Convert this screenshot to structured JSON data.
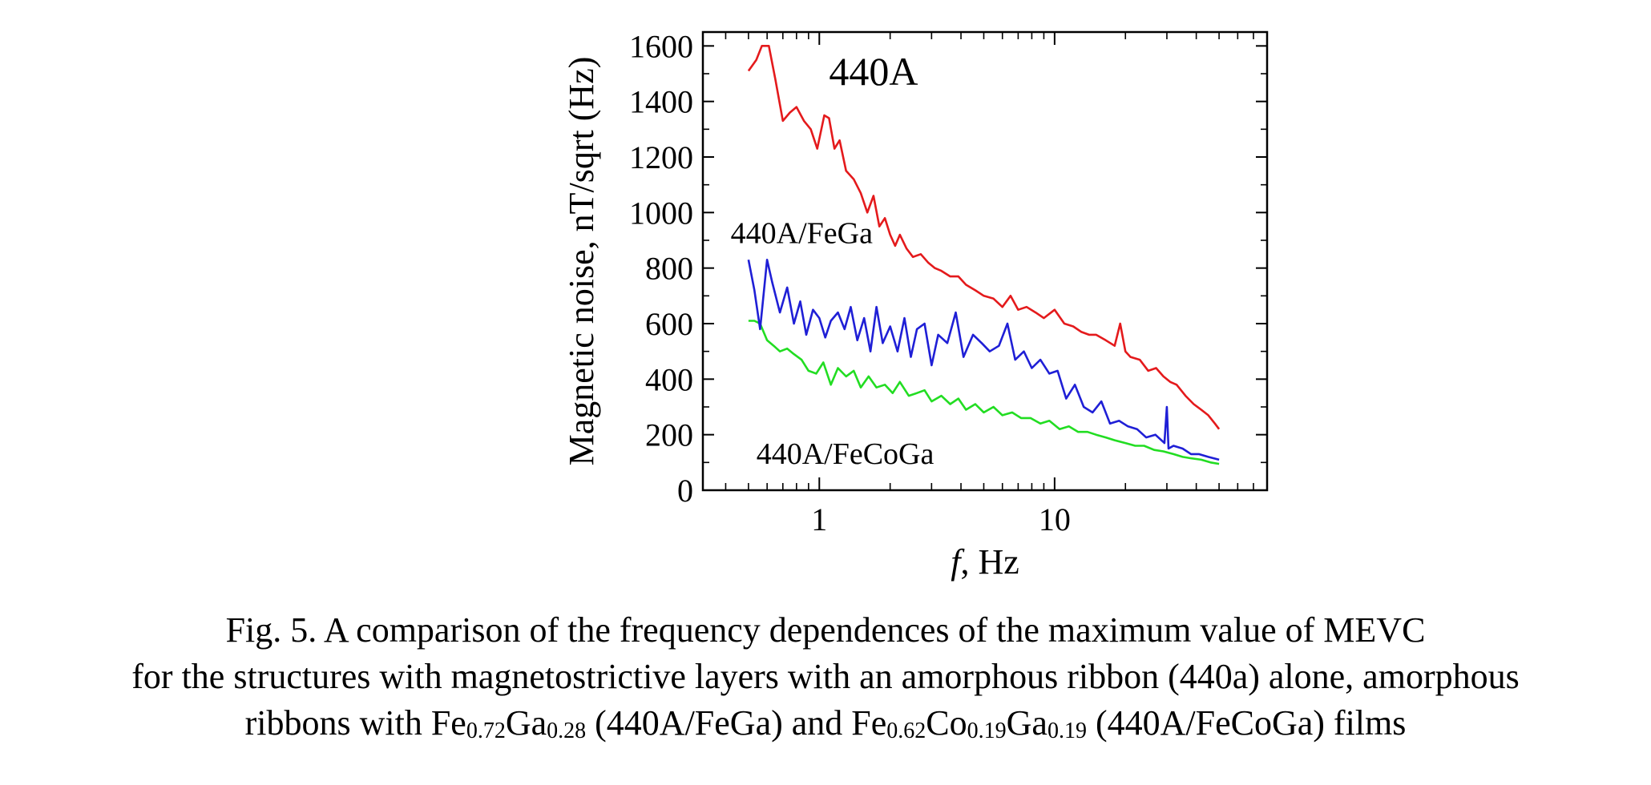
{
  "chart_data": {
    "type": "line",
    "x_scale": "log",
    "xlim": [
      0.32,
      80
    ],
    "ylim": [
      0,
      1650
    ],
    "xlabel_italic": "f",
    "xlabel_rest": ", Hz",
    "ylabel": "Magnetic noise, nT/sqrt (Hz)",
    "x_ticks": [
      1,
      10
    ],
    "x_tick_labels": [
      "1",
      "10"
    ],
    "y_ticks": [
      0,
      200,
      400,
      600,
      800,
      1000,
      1200,
      1400,
      1600
    ],
    "y_tick_labels": [
      "0",
      "200",
      "400",
      "600",
      "800",
      "1000",
      "1200",
      "1400",
      "1600"
    ],
    "grid": false,
    "series": [
      {
        "name": "440A",
        "color": "#e41a1c",
        "x": [
          0.5,
          0.54,
          0.57,
          0.61,
          0.65,
          0.7,
          0.75,
          0.8,
          0.86,
          0.92,
          0.98,
          1.05,
          1.1,
          1.16,
          1.22,
          1.3,
          1.4,
          1.5,
          1.6,
          1.7,
          1.8,
          1.9,
          2.0,
          2.1,
          2.2,
          2.35,
          2.5,
          2.7,
          2.9,
          3.1,
          3.3,
          3.6,
          3.9,
          4.2,
          4.6,
          5.0,
          5.5,
          6.0,
          6.5,
          7.0,
          7.6,
          8.3,
          9.0,
          10,
          11,
          12,
          13,
          14,
          15,
          16.5,
          18,
          19,
          20,
          21,
          23,
          25,
          27,
          29,
          31,
          33,
          36,
          39,
          42,
          45,
          48,
          50
        ],
        "values": [
          1510,
          1550,
          1600,
          1600,
          1480,
          1330,
          1360,
          1380,
          1330,
          1300,
          1230,
          1350,
          1340,
          1230,
          1260,
          1150,
          1120,
          1070,
          1000,
          1060,
          950,
          980,
          920,
          880,
          920,
          870,
          840,
          850,
          820,
          800,
          790,
          770,
          770,
          740,
          720,
          700,
          690,
          660,
          700,
          650,
          660,
          640,
          620,
          650,
          600,
          590,
          570,
          560,
          560,
          540,
          520,
          600,
          500,
          480,
          470,
          430,
          440,
          410,
          390,
          380,
          340,
          310,
          290,
          270,
          240,
          220
        ]
      },
      {
        "name": "440A/FeGa",
        "color": "#1f1fd6",
        "x": [
          0.5,
          0.53,
          0.56,
          0.6,
          0.63,
          0.68,
          0.73,
          0.78,
          0.83,
          0.88,
          0.94,
          1.0,
          1.06,
          1.12,
          1.2,
          1.28,
          1.36,
          1.45,
          1.55,
          1.65,
          1.75,
          1.86,
          2.0,
          2.15,
          2.3,
          2.45,
          2.6,
          2.8,
          3.0,
          3.2,
          3.5,
          3.8,
          4.1,
          4.5,
          4.9,
          5.3,
          5.8,
          6.3,
          6.8,
          7.4,
          8.0,
          8.7,
          9.5,
          10.3,
          11.2,
          12.2,
          13.3,
          14.5,
          15.8,
          17.2,
          18.8,
          20.5,
          22.4,
          24.5,
          26.8,
          29.3,
          30,
          30.5,
          32,
          35,
          38,
          41,
          45,
          50
        ],
        "values": [
          830,
          720,
          580,
          830,
          750,
          640,
          730,
          600,
          680,
          560,
          650,
          620,
          550,
          610,
          640,
          580,
          660,
          540,
          620,
          500,
          660,
          530,
          590,
          500,
          620,
          480,
          580,
          600,
          450,
          560,
          530,
          640,
          480,
          560,
          530,
          500,
          520,
          600,
          470,
          500,
          440,
          470,
          420,
          430,
          330,
          380,
          300,
          280,
          320,
          240,
          250,
          230,
          220,
          190,
          200,
          170,
          300,
          150,
          160,
          150,
          130,
          130,
          120,
          110
        ]
      },
      {
        "name": "440A/FeCoGa",
        "color": "#22dd22",
        "x": [
          0.5,
          0.53,
          0.56,
          0.6,
          0.64,
          0.68,
          0.73,
          0.78,
          0.84,
          0.9,
          0.97,
          1.04,
          1.12,
          1.2,
          1.3,
          1.4,
          1.5,
          1.62,
          1.75,
          1.9,
          2.05,
          2.2,
          2.4,
          2.6,
          2.8,
          3.0,
          3.3,
          3.6,
          3.9,
          4.2,
          4.6,
          5.0,
          5.5,
          6.0,
          6.6,
          7.2,
          7.9,
          8.7,
          9.5,
          10.5,
          11.5,
          12.6,
          13.8,
          15,
          16.5,
          18,
          20,
          22,
          24,
          26.5,
          29,
          32,
          35,
          38,
          42,
          46,
          50
        ],
        "values": [
          610,
          610,
          600,
          540,
          520,
          500,
          510,
          490,
          470,
          430,
          420,
          460,
          380,
          440,
          410,
          430,
          370,
          410,
          370,
          380,
          350,
          390,
          340,
          350,
          360,
          320,
          340,
          310,
          330,
          290,
          310,
          280,
          300,
          270,
          280,
          260,
          260,
          240,
          250,
          220,
          230,
          210,
          210,
          200,
          190,
          180,
          170,
          160,
          160,
          145,
          140,
          130,
          120,
          115,
          110,
          100,
          95
        ]
      }
    ],
    "annotations": [
      {
        "text": "440A",
        "x": 1.1,
        "y": 1460,
        "size": "big"
      },
      {
        "text": "440A/FeGa",
        "x": 0.42,
        "y": 890,
        "size": "normal"
      },
      {
        "text": "440A/FeCoGa",
        "x": 0.54,
        "y": 95,
        "size": "normal"
      }
    ]
  },
  "caption": {
    "line1": "Fig. 5. A comparison of the frequency dependences of the maximum value of MEVC",
    "line2": "for the structures with magnetostrictive layers with an amorphous ribbon (440a) alone, amorphous",
    "line3_a": "ribbons with Fe",
    "line3_sub1": "0.72",
    "line3_b": "Ga",
    "line3_sub2": "0.28",
    "line3_c": " (440A/FeGa) and Fe",
    "line3_sub3": "0.62",
    "line3_d": "Co",
    "line3_sub4": "0.19",
    "line3_e": "Ga",
    "line3_sub5": "0.19",
    "line3_f": " (440A/FeCoGa) films"
  }
}
